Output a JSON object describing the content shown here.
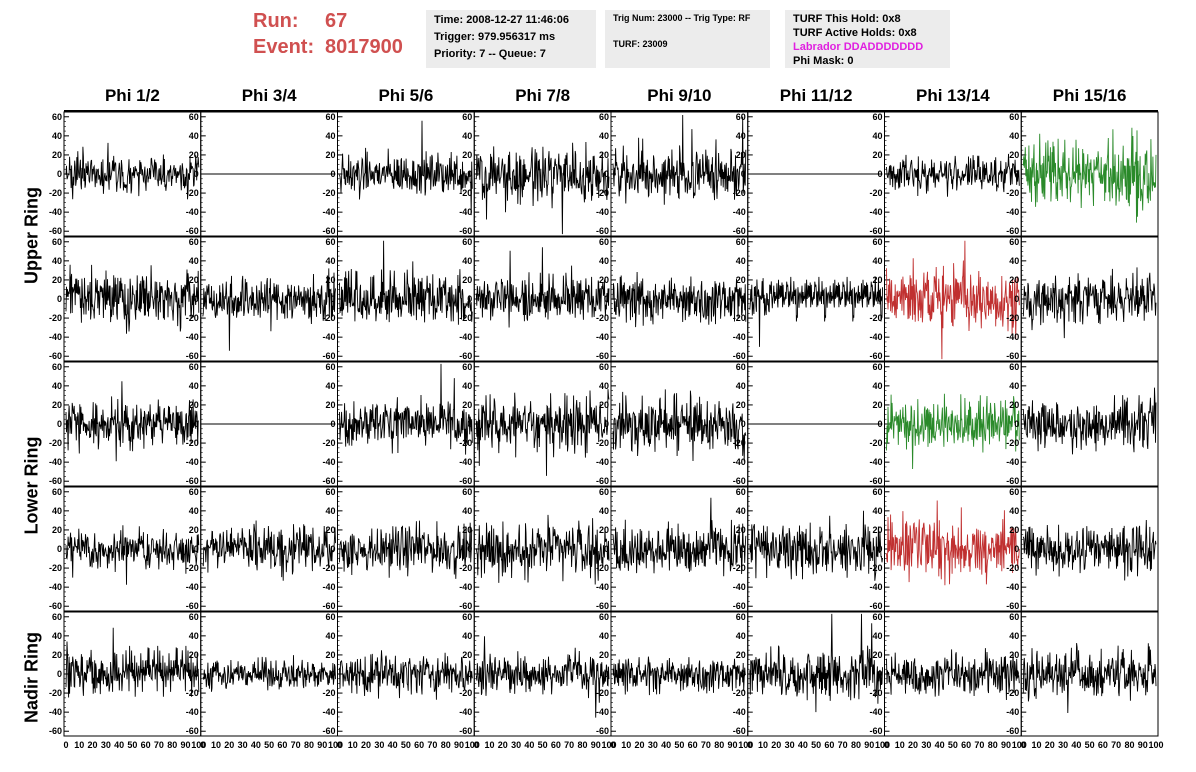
{
  "header": {
    "run_label": "Run:",
    "run_value": "67",
    "event_label": "Event:",
    "event_value": "8017900",
    "time": "Time: 2008-12-27 11:46:06",
    "trigger": "Trigger: 979.956317 ms",
    "priority": "Priority: 7 -- Queue: 7",
    "trig_num": "Trig Num: 23000 -- Trig Type: RF",
    "turf": "TURF: 23009",
    "turf_this_hold": "TURF This Hold: 0x8",
    "turf_active_holds": "TURF Active Holds: 0x8",
    "labrador": "Labrador DDADDDDDDD",
    "phi_mask": "Phi Mask: 0"
  },
  "columns": [
    "Phi 1/2",
    "Phi 3/4",
    "Phi 5/6",
    "Phi 7/8",
    "Phi 9/10",
    "Phi 11/12",
    "Phi 13/14",
    "Phi 15/16"
  ],
  "ring_labels": [
    "Upper Ring",
    "Lower Ring",
    "Nadir Ring"
  ],
  "colors": {
    "normal": "#000000",
    "green": "#2a8a2a",
    "red": "#c03030",
    "run_text": "#d05050",
    "magenta": "#e020e0"
  },
  "chart_data": {
    "type": "line",
    "xlim": [
      0,
      100
    ],
    "ylim": [
      -65,
      65
    ],
    "x_ticks": [
      "0",
      "10",
      "20",
      "30",
      "40",
      "50",
      "60",
      "70",
      "80",
      "90",
      "100"
    ],
    "y_ticks": [
      "-60",
      "-40",
      "-20",
      "0",
      "20",
      "40",
      "60"
    ],
    "rows": 5,
    "cols": 8,
    "panels": [
      {
        "row": 0,
        "col": 0,
        "amp": 14,
        "color": "normal",
        "flat": false
      },
      {
        "row": 0,
        "col": 1,
        "amp": 0,
        "color": "normal",
        "flat": true
      },
      {
        "row": 0,
        "col": 2,
        "amp": 14,
        "color": "normal",
        "flat": false
      },
      {
        "row": 0,
        "col": 3,
        "amp": 18,
        "color": "normal",
        "flat": false
      },
      {
        "row": 0,
        "col": 4,
        "amp": 18,
        "color": "normal",
        "flat": false
      },
      {
        "row": 0,
        "col": 5,
        "amp": 0,
        "color": "normal",
        "flat": true
      },
      {
        "row": 0,
        "col": 6,
        "amp": 12,
        "color": "normal",
        "flat": false
      },
      {
        "row": 0,
        "col": 7,
        "amp": 24,
        "color": "green",
        "flat": false
      },
      {
        "row": 1,
        "col": 0,
        "amp": 18,
        "color": "normal",
        "flat": false
      },
      {
        "row": 1,
        "col": 1,
        "amp": 16,
        "color": "normal",
        "flat": false
      },
      {
        "row": 1,
        "col": 2,
        "amp": 18,
        "color": "normal",
        "flat": false
      },
      {
        "row": 1,
        "col": 3,
        "amp": 16,
        "color": "normal",
        "flat": false
      },
      {
        "row": 1,
        "col": 4,
        "amp": 16,
        "color": "normal",
        "flat": false
      },
      {
        "row": 1,
        "col": 5,
        "amp": 14,
        "color": "normal",
        "flat": false
      },
      {
        "row": 1,
        "col": 6,
        "amp": 20,
        "color": "red",
        "flat": false
      },
      {
        "row": 1,
        "col": 7,
        "amp": 16,
        "color": "normal",
        "flat": false
      },
      {
        "row": 2,
        "col": 0,
        "amp": 16,
        "color": "normal",
        "flat": false
      },
      {
        "row": 2,
        "col": 1,
        "amp": 0,
        "color": "normal",
        "flat": true
      },
      {
        "row": 2,
        "col": 2,
        "amp": 16,
        "color": "normal",
        "flat": false
      },
      {
        "row": 2,
        "col": 3,
        "amp": 18,
        "color": "normal",
        "flat": false
      },
      {
        "row": 2,
        "col": 4,
        "amp": 20,
        "color": "normal",
        "flat": false
      },
      {
        "row": 2,
        "col": 5,
        "amp": 0,
        "color": "normal",
        "flat": true
      },
      {
        "row": 2,
        "col": 6,
        "amp": 18,
        "color": "green",
        "flat": false
      },
      {
        "row": 2,
        "col": 7,
        "amp": 18,
        "color": "normal",
        "flat": false
      },
      {
        "row": 3,
        "col": 0,
        "amp": 14,
        "color": "normal",
        "flat": false
      },
      {
        "row": 3,
        "col": 1,
        "amp": 16,
        "color": "normal",
        "flat": false
      },
      {
        "row": 3,
        "col": 2,
        "amp": 16,
        "color": "normal",
        "flat": false
      },
      {
        "row": 3,
        "col": 3,
        "amp": 18,
        "color": "normal",
        "flat": false
      },
      {
        "row": 3,
        "col": 4,
        "amp": 16,
        "color": "normal",
        "flat": false
      },
      {
        "row": 3,
        "col": 5,
        "amp": 18,
        "color": "normal",
        "flat": false
      },
      {
        "row": 3,
        "col": 6,
        "amp": 22,
        "color": "red",
        "flat": false
      },
      {
        "row": 3,
        "col": 7,
        "amp": 18,
        "color": "normal",
        "flat": false
      },
      {
        "row": 4,
        "col": 0,
        "amp": 16,
        "color": "normal",
        "flat": false
      },
      {
        "row": 4,
        "col": 1,
        "amp": 10,
        "color": "normal",
        "flat": false
      },
      {
        "row": 4,
        "col": 2,
        "amp": 14,
        "color": "normal",
        "flat": false
      },
      {
        "row": 4,
        "col": 3,
        "amp": 14,
        "color": "normal",
        "flat": false
      },
      {
        "row": 4,
        "col": 4,
        "amp": 12,
        "color": "normal",
        "flat": false
      },
      {
        "row": 4,
        "col": 5,
        "amp": 18,
        "color": "normal",
        "flat": false
      },
      {
        "row": 4,
        "col": 6,
        "amp": 14,
        "color": "normal",
        "flat": false
      },
      {
        "row": 4,
        "col": 7,
        "amp": 16,
        "color": "normal",
        "flat": false
      }
    ]
  }
}
